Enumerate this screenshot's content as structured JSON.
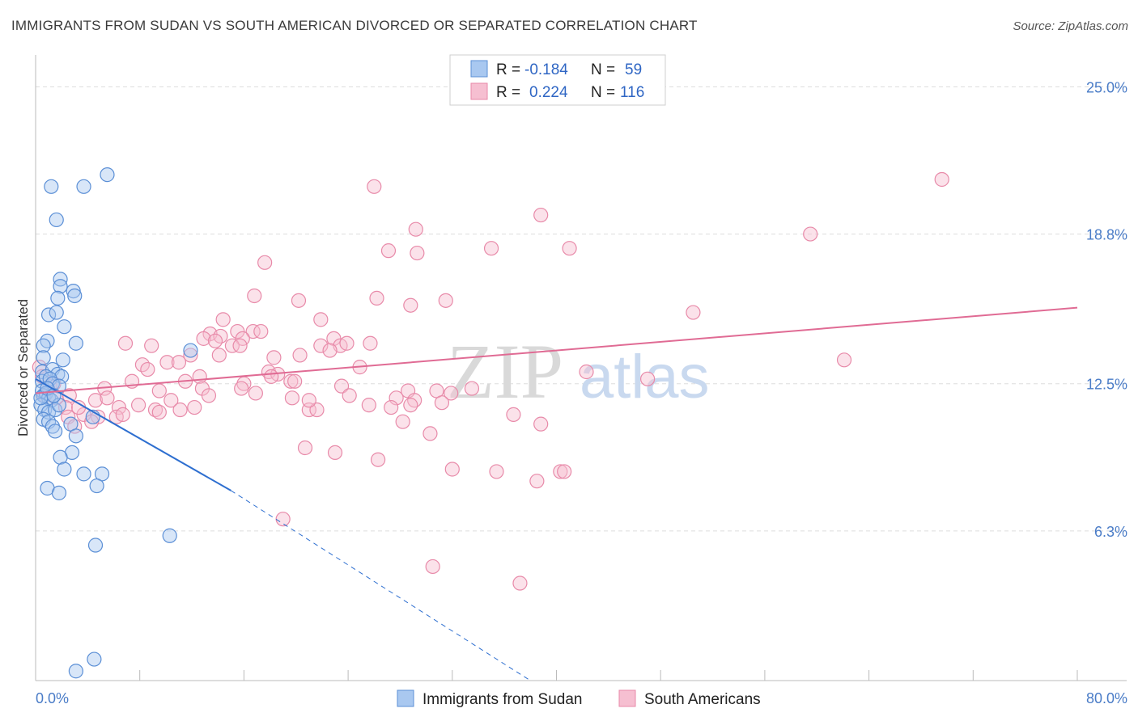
{
  "header": {
    "title": "IMMIGRANTS FROM SUDAN VS SOUTH AMERICAN DIVORCED OR SEPARATED CORRELATION CHART",
    "source": "Source: ZipAtlas.com"
  },
  "watermark": {
    "zip": "ZIP",
    "atlas": "atlas"
  },
  "colors": {
    "blue_fill": "#a9c8f0",
    "blue_stroke": "#5b8fd6",
    "blue_line": "#2e6fd0",
    "pink_fill": "#f6bfd1",
    "pink_stroke": "#e88aa9",
    "pink_line": "#e06b94",
    "tick_label": "#4a7cc7",
    "grid": "#dddddd"
  },
  "legend_box": {
    "r_label": "R =",
    "n_label": "N =",
    "rows": [
      {
        "r": "-0.184",
        "n": "59",
        "color": "blue"
      },
      {
        "r": "0.224",
        "n": "116",
        "color": "pink"
      }
    ]
  },
  "bottom_legend": [
    {
      "label": "Immigrants from Sudan",
      "color": "blue"
    },
    {
      "label": "South Americans",
      "color": "pink"
    }
  ],
  "chart_data": {
    "type": "scatter",
    "title": "IMMIGRANTS FROM SUDAN VS SOUTH AMERICAN DIVORCED OR SEPARATED CORRELATION CHART",
    "xlabel": "",
    "ylabel": "Divorced or Separated",
    "xlim": [
      0,
      80
    ],
    "ylim": [
      0,
      26
    ],
    "x_tick_labels": [
      "0.0%",
      "80.0%"
    ],
    "y_ticks": [
      6.3,
      12.5,
      18.8,
      25.0
    ],
    "y_tick_labels": [
      "6.3%",
      "12.5%",
      "18.8%",
      "25.0%"
    ],
    "grid": true,
    "legend_position": "top-center",
    "series": [
      {
        "name": "Immigrants from Sudan",
        "color": "blue",
        "R": -0.184,
        "N": 59,
        "trend": {
          "x": [
            0,
            15
          ],
          "y": [
            12.7,
            8.0
          ],
          "dashed_to": [
            38,
            0
          ]
        },
        "points": [
          [
            1.2,
            20.8
          ],
          [
            3.7,
            20.8
          ],
          [
            5.5,
            21.3
          ],
          [
            1.6,
            19.4
          ],
          [
            1.9,
            16.9
          ],
          [
            1.9,
            16.6
          ],
          [
            2.9,
            16.4
          ],
          [
            3.0,
            16.2
          ],
          [
            1.7,
            16.1
          ],
          [
            1.0,
            15.4
          ],
          [
            1.6,
            15.5
          ],
          [
            2.2,
            14.9
          ],
          [
            0.9,
            14.3
          ],
          [
            3.1,
            14.2
          ],
          [
            0.6,
            14.1
          ],
          [
            11.9,
            13.9
          ],
          [
            0.6,
            13.6
          ],
          [
            2.1,
            13.5
          ],
          [
            0.5,
            13.0
          ],
          [
            1.3,
            13.1
          ],
          [
            1.7,
            12.9
          ],
          [
            2.0,
            12.8
          ],
          [
            0.5,
            12.6
          ],
          [
            0.8,
            12.8
          ],
          [
            1.1,
            12.7
          ],
          [
            1.3,
            12.5
          ],
          [
            1.8,
            12.4
          ],
          [
            0.5,
            12.2
          ],
          [
            0.6,
            12.0
          ],
          [
            0.8,
            12.1
          ],
          [
            1.0,
            11.9
          ],
          [
            1.2,
            11.8
          ],
          [
            0.4,
            11.6
          ],
          [
            0.7,
            11.4
          ],
          [
            1.0,
            11.3
          ],
          [
            1.5,
            11.4
          ],
          [
            1.8,
            11.6
          ],
          [
            0.6,
            11.0
          ],
          [
            1.0,
            10.9
          ],
          [
            1.3,
            10.7
          ],
          [
            2.7,
            10.8
          ],
          [
            4.4,
            11.1
          ],
          [
            1.5,
            10.5
          ],
          [
            3.1,
            10.3
          ],
          [
            2.8,
            9.6
          ],
          [
            1.9,
            9.4
          ],
          [
            2.2,
            8.9
          ],
          [
            3.7,
            8.7
          ],
          [
            5.1,
            8.7
          ],
          [
            0.9,
            8.1
          ],
          [
            1.8,
            7.9
          ],
          [
            4.7,
            8.2
          ],
          [
            10.3,
            6.1
          ],
          [
            4.6,
            5.7
          ],
          [
            4.5,
            0.9
          ],
          [
            3.1,
            0.4
          ],
          [
            0.4,
            11.9
          ],
          [
            0.9,
            12.3
          ],
          [
            1.4,
            12.0
          ]
        ]
      },
      {
        "name": "South Americans",
        "color": "pink",
        "R": 0.224,
        "N": 116,
        "trend": {
          "x": [
            0,
            80
          ],
          "y": [
            12.1,
            15.7
          ]
        },
        "points": [
          [
            69.6,
            21.1
          ],
          [
            26.0,
            20.8
          ],
          [
            38.8,
            19.6
          ],
          [
            29.2,
            19.0
          ],
          [
            59.5,
            18.8
          ],
          [
            27.1,
            18.1
          ],
          [
            29.3,
            18.0
          ],
          [
            35.0,
            18.2
          ],
          [
            41.0,
            18.2
          ],
          [
            17.6,
            17.6
          ],
          [
            16.8,
            16.2
          ],
          [
            20.2,
            16.0
          ],
          [
            26.2,
            16.1
          ],
          [
            31.5,
            16.0
          ],
          [
            28.8,
            15.8
          ],
          [
            50.5,
            15.5
          ],
          [
            14.4,
            15.2
          ],
          [
            21.9,
            15.2
          ],
          [
            13.4,
            14.6
          ],
          [
            14.2,
            14.5
          ],
          [
            15.5,
            14.7
          ],
          [
            16.7,
            14.7
          ],
          [
            17.3,
            14.7
          ],
          [
            12.9,
            14.4
          ],
          [
            13.8,
            14.3
          ],
          [
            15.9,
            14.4
          ],
          [
            22.9,
            14.4
          ],
          [
            6.9,
            14.2
          ],
          [
            8.9,
            14.1
          ],
          [
            15.1,
            14.1
          ],
          [
            15.7,
            14.1
          ],
          [
            21.9,
            14.1
          ],
          [
            23.4,
            14.1
          ],
          [
            23.9,
            14.2
          ],
          [
            25.7,
            14.2
          ],
          [
            22.6,
            13.9
          ],
          [
            11.9,
            13.7
          ],
          [
            14.1,
            13.7
          ],
          [
            18.3,
            13.6
          ],
          [
            20.3,
            13.7
          ],
          [
            62.1,
            13.5
          ],
          [
            8.2,
            13.3
          ],
          [
            10.1,
            13.4
          ],
          [
            11.0,
            13.4
          ],
          [
            8.6,
            13.1
          ],
          [
            17.9,
            13.0
          ],
          [
            18.6,
            12.9
          ],
          [
            24.9,
            13.2
          ],
          [
            42.3,
            13.0
          ],
          [
            7.4,
            12.6
          ],
          [
            11.5,
            12.6
          ],
          [
            12.6,
            12.8
          ],
          [
            16.0,
            12.5
          ],
          [
            18.1,
            12.8
          ],
          [
            19.6,
            12.6
          ],
          [
            23.5,
            12.4
          ],
          [
            47.0,
            12.7
          ],
          [
            5.3,
            12.3
          ],
          [
            9.5,
            12.2
          ],
          [
            12.8,
            12.3
          ],
          [
            16.9,
            12.1
          ],
          [
            24.1,
            12.0
          ],
          [
            28.6,
            12.2
          ],
          [
            30.8,
            12.2
          ],
          [
            31.9,
            12.1
          ],
          [
            33.5,
            12.3
          ],
          [
            1.6,
            11.9
          ],
          [
            4.6,
            11.8
          ],
          [
            5.5,
            11.9
          ],
          [
            10.4,
            11.8
          ],
          [
            19.7,
            11.9
          ],
          [
            27.7,
            11.9
          ],
          [
            29.1,
            11.8
          ],
          [
            0.7,
            12.0
          ],
          [
            2.6,
            12.0
          ],
          [
            2.3,
            11.5
          ],
          [
            6.4,
            11.5
          ],
          [
            9.2,
            11.4
          ],
          [
            11.1,
            11.4
          ],
          [
            12.2,
            11.5
          ],
          [
            21.0,
            11.4
          ],
          [
            21.6,
            11.4
          ],
          [
            25.6,
            11.6
          ],
          [
            28.8,
            11.6
          ],
          [
            2.5,
            11.1
          ],
          [
            3.7,
            11.2
          ],
          [
            4.8,
            11.1
          ],
          [
            6.2,
            11.1
          ],
          [
            6.7,
            11.2
          ],
          [
            9.5,
            11.3
          ],
          [
            36.7,
            11.2
          ],
          [
            28.2,
            10.9
          ],
          [
            38.8,
            10.8
          ],
          [
            3.0,
            10.7
          ],
          [
            4.3,
            10.9
          ],
          [
            1.1,
            12.4
          ],
          [
            0.3,
            13.2
          ],
          [
            30.3,
            10.4
          ],
          [
            20.7,
            9.8
          ],
          [
            23.0,
            9.6
          ],
          [
            26.3,
            9.3
          ],
          [
            32.0,
            8.9
          ],
          [
            35.4,
            8.8
          ],
          [
            38.5,
            8.4
          ],
          [
            40.3,
            8.8
          ],
          [
            40.6,
            8.8
          ],
          [
            19.0,
            6.8
          ],
          [
            30.5,
            4.8
          ],
          [
            37.2,
            4.1
          ],
          [
            0.5,
            12.8
          ],
          [
            1.4,
            12.5
          ],
          [
            3.3,
            11.5
          ],
          [
            7.9,
            11.6
          ],
          [
            13.3,
            12.0
          ],
          [
            15.8,
            12.3
          ],
          [
            19.9,
            12.6
          ],
          [
            21.0,
            11.8
          ],
          [
            27.3,
            11.5
          ],
          [
            31.2,
            11.7
          ]
        ]
      }
    ]
  }
}
